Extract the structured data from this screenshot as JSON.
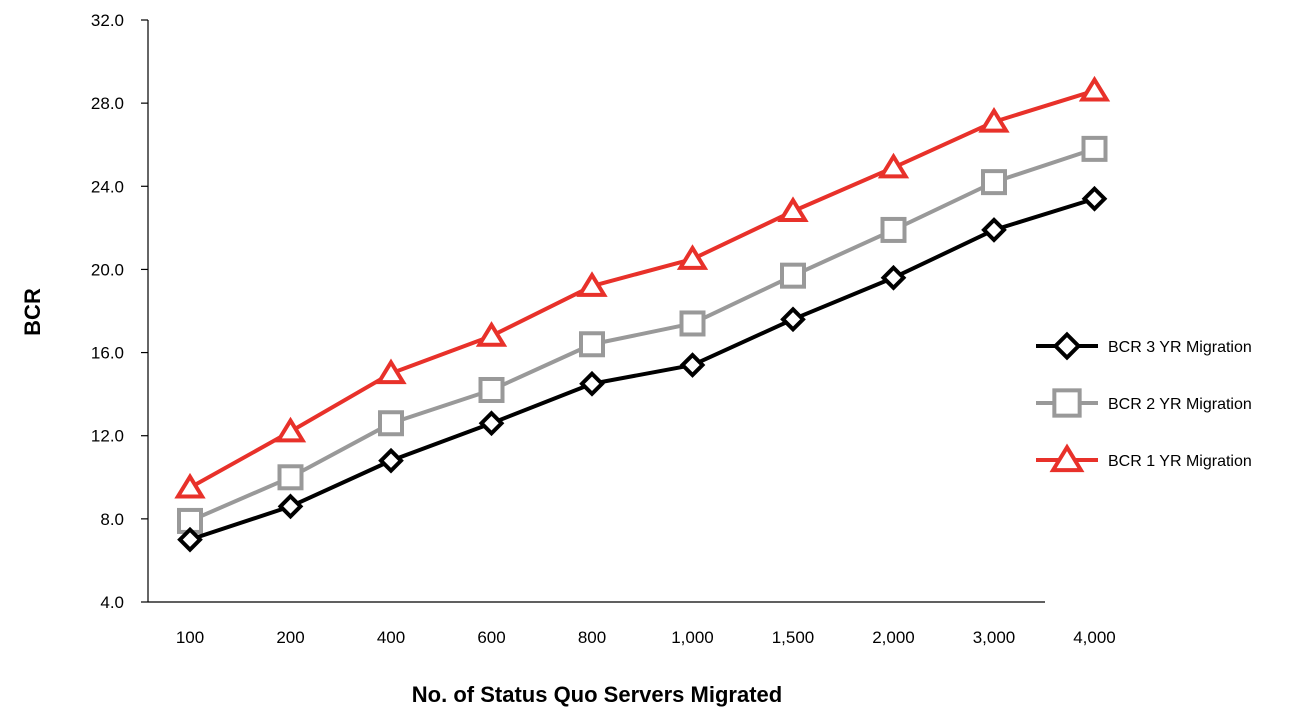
{
  "chart_data": {
    "type": "line",
    "xlabel": "No. of Status Quo Servers Migrated",
    "ylabel": "BCR",
    "categories": [
      "100",
      "200",
      "400",
      "600",
      "800",
      "1,000",
      "1,500",
      "2,000",
      "3,000",
      "4,000"
    ],
    "ylim": [
      4.0,
      32.0
    ],
    "yticks": [
      "4.0",
      "8.0",
      "12.0",
      "16.0",
      "20.0",
      "24.0",
      "28.0",
      "32.0"
    ],
    "grid": false,
    "legend_position": "right",
    "series": [
      {
        "name": "BCR 3 YR Migration",
        "color": "#000000",
        "marker": "diamond",
        "values": [
          7.0,
          8.6,
          10.8,
          12.6,
          14.5,
          15.4,
          17.6,
          19.6,
          21.9,
          23.4
        ]
      },
      {
        "name": "BCR 2 YR Migration",
        "color": "#999999",
        "marker": "square",
        "values": [
          7.9,
          10.0,
          12.6,
          14.2,
          16.4,
          17.4,
          19.7,
          21.9,
          24.2,
          25.8
        ]
      },
      {
        "name": "BCR 1 YR Migration",
        "color": "#e8312a",
        "marker": "triangle",
        "values": [
          9.5,
          12.2,
          15.0,
          16.8,
          19.2,
          20.5,
          22.8,
          24.9,
          27.1,
          28.6
        ]
      }
    ]
  }
}
